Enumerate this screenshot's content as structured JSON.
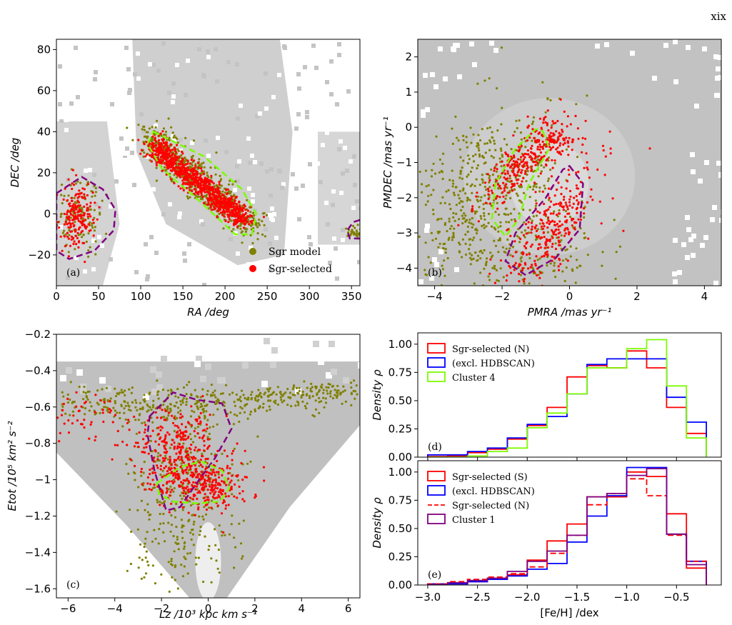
{
  "page_number": "xix",
  "colors": {
    "sgr_model": "#808000",
    "sgr_selected": "#ff0000",
    "hdbscan": "#0000ff",
    "cluster4": "#7cfc00",
    "cluster1": "#800080",
    "density_bg": "#bdbdbd"
  },
  "chart_data": [
    {
      "id": "a",
      "panel_label": "(a)",
      "type": "scatter",
      "xlabel": "RA /deg",
      "ylabel": "DEC /deg",
      "xlim": [
        0,
        360
      ],
      "ylim": [
        -35,
        85
      ],
      "xticks": [
        0,
        50,
        100,
        150,
        200,
        250,
        300,
        350
      ],
      "yticks": [
        -20,
        0,
        20,
        40,
        60,
        80
      ],
      "legend_position": "lower-right",
      "series": [
        {
          "name": "Sgr model",
          "color": "#808000",
          "clouds": [
            {
              "x": [
                110,
                230
              ],
              "y": [
                40,
                -8
              ]
            },
            {
              "x": [
                5,
                45
              ],
              "y": [
                20,
                -15
              ]
            },
            {
              "x": [
                345,
                360
              ],
              "y": [
                -5,
                -15
              ]
            }
          ]
        },
        {
          "name": "Sgr-selected",
          "color": "#ff0000",
          "clouds": [
            {
              "x": [
                115,
                225
              ],
              "y": [
                35,
                -5
              ]
            },
            {
              "x": [
                5,
                42
              ],
              "y": [
                15,
                -12
              ]
            }
          ]
        }
      ],
      "contours": [
        {
          "color": "#7cfc00",
          "points": [
            [
              115,
              40
            ],
            [
              175,
              28
            ],
            [
              220,
              12
            ],
            [
              237,
              0
            ],
            [
              232,
              -10
            ],
            [
              212,
              -10
            ],
            [
              165,
              8
            ],
            [
              125,
              22
            ],
            [
              108,
              34
            ]
          ]
        },
        {
          "color": "#800080",
          "points": [
            [
              0,
              10
            ],
            [
              30,
              18
            ],
            [
              55,
              12
            ],
            [
              70,
              2
            ],
            [
              68,
              -8
            ],
            [
              45,
              -18
            ],
            [
              15,
              -22
            ],
            [
              0,
              -18
            ]
          ]
        },
        {
          "color": "#800080",
          "points": [
            [
              360,
              -3
            ],
            [
              352,
              -4
            ],
            [
              345,
              -8
            ],
            [
              348,
              -12
            ],
            [
              360,
              -12
            ]
          ]
        }
      ]
    },
    {
      "id": "b",
      "panel_label": "(b)",
      "type": "scatter",
      "xlabel": "PMRA /mas yr⁻¹",
      "ylabel": "PMDEC /mas yr⁻¹",
      "xlim": [
        -4.5,
        4.5
      ],
      "ylim": [
        -4.5,
        2.5
      ],
      "xticks": [
        -4,
        -2,
        0,
        2,
        4
      ],
      "yticks": [
        -4,
        -3,
        -2,
        -1,
        0,
        1,
        2
      ],
      "contours": [
        {
          "color": "#7cfc00",
          "points": [
            [
              -0.8,
              -0.1
            ],
            [
              -0.6,
              -0.6
            ],
            [
              -1.2,
              -1.6
            ],
            [
              -1.5,
              -2.6
            ],
            [
              -1.9,
              -3.1
            ],
            [
              -2.3,
              -2.6
            ],
            [
              -2.2,
              -1.6
            ],
            [
              -1.6,
              -0.6
            ],
            [
              -1.0,
              -0.05
            ]
          ]
        },
        {
          "color": "#800080",
          "points": [
            [
              0.0,
              -1.1
            ],
            [
              0.4,
              -1.6
            ],
            [
              0.3,
              -2.9
            ],
            [
              -0.4,
              -3.7
            ],
            [
              -1.3,
              -4.2
            ],
            [
              -1.9,
              -3.8
            ],
            [
              -1.6,
              -3.0
            ],
            [
              -0.7,
              -2.0
            ],
            [
              -0.2,
              -1.2
            ]
          ]
        }
      ]
    },
    {
      "id": "c",
      "panel_label": "(c)",
      "type": "scatter",
      "xlabel": "Lz /10³ kpc km s⁻¹",
      "ylabel": "Etot /10⁵ km² s⁻²",
      "xlim": [
        -6.5,
        6.5
      ],
      "ylim": [
        -1.65,
        -0.2
      ],
      "xticks": [
        -6,
        -4,
        -2,
        0,
        2,
        4,
        6
      ],
      "yticks": [
        -1.6,
        -1.4,
        -1.2,
        -1.0,
        -0.8,
        -0.6,
        -0.4,
        -0.2
      ],
      "contours": [
        {
          "color": "#800080",
          "points": [
            [
              -2.5,
              -0.65
            ],
            [
              -1.5,
              -0.52
            ],
            [
              -0.5,
              -0.56
            ],
            [
              0.6,
              -0.58
            ],
            [
              1.0,
              -0.72
            ],
            [
              0.3,
              -0.88
            ],
            [
              -0.5,
              -1.02
            ],
            [
              -1.2,
              -1.15
            ],
            [
              -1.8,
              -1.17
            ],
            [
              -2.3,
              -0.95
            ],
            [
              -2.6,
              -0.75
            ]
          ]
        },
        {
          "color": "#7cfc00",
          "points": [
            [
              -2.2,
              -1.02
            ],
            [
              -1.2,
              -0.93
            ],
            [
              -0.3,
              -0.9
            ],
            [
              0.6,
              -0.95
            ],
            [
              0.9,
              -1.05
            ],
            [
              0.5,
              -1.12
            ],
            [
              -0.5,
              -1.13
            ],
            [
              -1.5,
              -1.12
            ],
            [
              -2.1,
              -1.08
            ]
          ]
        }
      ]
    },
    {
      "id": "d",
      "panel_label": "(d)",
      "type": "histogram",
      "ylabel": "Density ρ",
      "xlim": [
        -3.1,
        -0.05
      ],
      "ylim": [
        0,
        1.1
      ],
      "yticks": [
        0.0,
        0.25,
        0.5,
        0.75,
        1.0
      ],
      "bin_edges": [
        -3.0,
        -2.8,
        -2.6,
        -2.4,
        -2.2,
        -2.0,
        -1.8,
        -1.6,
        -1.4,
        -1.2,
        -1.0,
        -0.8,
        -0.6,
        -0.4,
        -0.2
      ],
      "legend_position": "upper-left",
      "series": [
        {
          "name": "Sgr-selected (N)",
          "color": "#ff0000",
          "dashed": false,
          "values": [
            0.005,
            0.01,
            0.04,
            0.07,
            0.16,
            0.28,
            0.44,
            0.71,
            0.81,
            0.79,
            0.94,
            0.79,
            0.44,
            0.21
          ]
        },
        {
          "name": "(excl. HDBSCAN)",
          "color": "#0000ff",
          "dashed": false,
          "values": [
            0.02,
            0.02,
            0.05,
            0.08,
            0.17,
            0.29,
            0.36,
            0.56,
            0.82,
            0.87,
            0.87,
            0.87,
            0.53,
            0.31
          ]
        },
        {
          "name": "Cluster 4",
          "color": "#7cfc00",
          "dashed": false,
          "values": [
            0.0,
            0.0,
            0.01,
            0.05,
            0.08,
            0.26,
            0.39,
            0.56,
            0.79,
            0.79,
            0.96,
            1.04,
            0.63,
            0.17
          ]
        }
      ]
    },
    {
      "id": "e",
      "panel_label": "(e)",
      "type": "histogram",
      "xlabel": "[Fe/H] /dex",
      "ylabel": "Density ρ",
      "xlim": [
        -3.1,
        -0.05
      ],
      "ylim": [
        0,
        1.1
      ],
      "xticks": [
        -3.0,
        -2.5,
        -2.0,
        -1.5,
        -1.0,
        -0.5
      ],
      "yticks": [
        0.0,
        0.25,
        0.5,
        0.75,
        1.0
      ],
      "bin_edges": [
        -3.0,
        -2.8,
        -2.6,
        -2.4,
        -2.2,
        -2.0,
        -1.8,
        -1.6,
        -1.4,
        -1.2,
        -1.0,
        -0.8,
        -0.6,
        -0.4,
        -0.2
      ],
      "legend_position": "upper-left",
      "series": [
        {
          "name": "Sgr-selected (S)",
          "color": "#ff0000",
          "dashed": false,
          "values": [
            0.005,
            0.01,
            0.03,
            0.06,
            0.09,
            0.22,
            0.39,
            0.54,
            0.78,
            0.78,
            1.0,
            0.96,
            0.63,
            0.15
          ]
        },
        {
          "name": "(excl. HDBSCAN)",
          "color": "#0000ff",
          "dashed": false,
          "values": [
            0.01,
            0.01,
            0.03,
            0.05,
            0.08,
            0.14,
            0.19,
            0.38,
            0.61,
            0.79,
            1.04,
            1.04,
            0.45,
            0.21
          ]
        },
        {
          "name": "Sgr-selected (N)",
          "color": "#ff0000",
          "dashed": true,
          "values": [
            0.01,
            0.03,
            0.05,
            0.07,
            0.1,
            0.16,
            0.28,
            0.44,
            0.71,
            0.81,
            0.94,
            0.79,
            0.44,
            0.21
          ]
        },
        {
          "name": "Cluster 1",
          "color": "#800080",
          "dashed": false,
          "values": [
            0.005,
            0.02,
            0.04,
            0.06,
            0.12,
            0.21,
            0.3,
            0.44,
            0.78,
            0.81,
            0.97,
            1.03,
            0.45,
            0.18
          ]
        }
      ]
    }
  ]
}
